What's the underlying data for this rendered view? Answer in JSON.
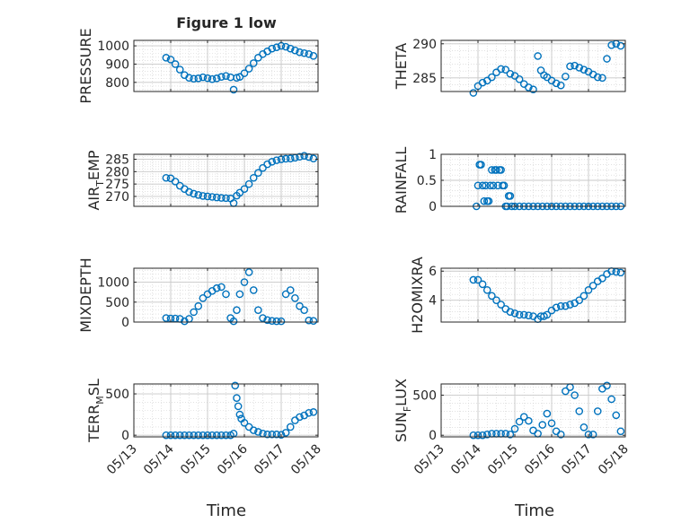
{
  "figure": {
    "title": "Figure 1 low",
    "xlabel": "Time",
    "date_ticks": [
      "05/13",
      "05/14",
      "05/15",
      "05/16",
      "05/17",
      "05/18"
    ],
    "marker_color": "#0072BD",
    "grid": true
  },
  "chart_data": [
    {
      "type": "scatter",
      "ylabel": "PRESSURE",
      "ylim": [
        750,
        1030
      ],
      "yticks": [
        800,
        900,
        1000
      ],
      "x": [
        "05/13 21:00",
        "05/14 00:00",
        "05/14 03:00",
        "05/14 06:00",
        "05/14 09:00",
        "05/14 12:00",
        "05/14 15:00",
        "05/14 18:00",
        "05/14 21:00",
        "05/15 00:00",
        "05/15 03:00",
        "05/15 06:00",
        "05/15 09:00",
        "05/15 12:00",
        "05/15 15:00",
        "05/15 17:00",
        "05/15 19:00",
        "05/15 21:00",
        "05/16 00:00",
        "05/16 03:00",
        "05/16 06:00",
        "05/16 09:00",
        "05/16 12:00",
        "05/16 15:00",
        "05/16 18:00",
        "05/16 21:00",
        "05/17 00:00",
        "05/17 03:00",
        "05/17 06:00",
        "05/17 09:00",
        "05/17 12:00",
        "05/17 15:00",
        "05/17 18:00",
        "05/17 21:00"
      ],
      "y": [
        935,
        925,
        900,
        870,
        840,
        825,
        820,
        822,
        828,
        823,
        818,
        822,
        830,
        835,
        828,
        760,
        825,
        830,
        850,
        875,
        905,
        935,
        955,
        970,
        985,
        992,
        1000,
        995,
        985,
        975,
        965,
        960,
        955,
        945
      ]
    },
    {
      "type": "scatter",
      "ylabel": "THETA",
      "ylim": [
        283,
        290.5
      ],
      "yticks": [
        285,
        290
      ],
      "x": [
        "05/13 21:00",
        "05/14 00:00",
        "05/14 03:00",
        "05/14 06:00",
        "05/14 09:00",
        "05/14 12:00",
        "05/14 15:00",
        "05/14 18:00",
        "05/14 21:00",
        "05/15 00:00",
        "05/15 03:00",
        "05/15 06:00",
        "05/15 09:00",
        "05/15 12:00",
        "05/15 15:00",
        "05/15 17:00",
        "05/15 19:00",
        "05/15 21:00",
        "05/16 00:00",
        "05/16 03:00",
        "05/16 06:00",
        "05/16 09:00",
        "05/16 12:00",
        "05/16 15:00",
        "05/16 18:00",
        "05/16 21:00",
        "05/17 00:00",
        "05/17 03:00",
        "05/17 06:00",
        "05/17 09:00",
        "05/17 12:00",
        "05/17 15:00",
        "05/17 18:00",
        "05/17 21:00"
      ],
      "y": [
        282.8,
        283.8,
        284.3,
        284.6,
        285.1,
        285.8,
        286.3,
        286.2,
        285.6,
        285.3,
        284.8,
        284.1,
        283.6,
        283.3,
        288.2,
        286.1,
        285.4,
        285.1,
        284.6,
        284.2,
        283.9,
        285.2,
        286.7,
        286.8,
        286.5,
        286.2,
        285.9,
        285.5,
        285.1,
        285.0,
        287.8,
        289.8,
        290.0,
        289.7
      ]
    },
    {
      "type": "scatter",
      "ylabel": "AIR_TEMP",
      "ylim": [
        266,
        287
      ],
      "yticks": [
        270,
        275,
        280,
        285
      ],
      "x": [
        "05/13 21:00",
        "05/14 00:00",
        "05/14 03:00",
        "05/14 06:00",
        "05/14 09:00",
        "05/14 12:00",
        "05/14 15:00",
        "05/14 18:00",
        "05/14 21:00",
        "05/15 00:00",
        "05/15 03:00",
        "05/15 06:00",
        "05/15 09:00",
        "05/15 12:00",
        "05/15 15:00",
        "05/15 17:00",
        "05/15 19:00",
        "05/15 21:00",
        "05/16 00:00",
        "05/16 03:00",
        "05/16 06:00",
        "05/16 09:00",
        "05/16 12:00",
        "05/16 15:00",
        "05/16 18:00",
        "05/16 21:00",
        "05/17 00:00",
        "05/17 03:00",
        "05/17 06:00",
        "05/17 09:00",
        "05/17 12:00",
        "05/17 15:00",
        "05/17 18:00",
        "05/17 21:00"
      ],
      "y": [
        277.5,
        277.3,
        276.0,
        274.3,
        273.0,
        271.8,
        271.1,
        270.6,
        270.2,
        270.0,
        269.8,
        269.6,
        269.4,
        269.3,
        269.2,
        267.3,
        270.3,
        271.5,
        273.0,
        275.0,
        277.5,
        279.5,
        281.5,
        283.0,
        284.0,
        284.6,
        285.0,
        285.2,
        285.3,
        285.6,
        286.0,
        286.4,
        285.9,
        285.3
      ]
    },
    {
      "type": "scatter",
      "ylabel": "RAINFALL",
      "ylim": [
        0,
        1
      ],
      "yticks": [
        0,
        0.5,
        1
      ],
      "x": [
        "05/13 23:00",
        "05/14 00:00",
        "05/14 01:00",
        "05/14 02:00",
        "05/14 03:00",
        "05/14 04:00",
        "05/14 05:00",
        "05/14 06:00",
        "05/14 07:00",
        "05/14 08:00",
        "05/14 09:00",
        "05/14 10:00",
        "05/14 11:00",
        "05/14 12:00",
        "05/14 13:00",
        "05/14 14:00",
        "05/14 15:00",
        "05/14 16:00",
        "05/14 17:00",
        "05/14 18:00",
        "05/14 19:00",
        "05/14 20:00",
        "05/14 21:00",
        "05/14 22:00",
        "05/15 00:00",
        "05/15 03:00",
        "05/15 06:00",
        "05/15 09:00",
        "05/15 12:00",
        "05/15 15:00",
        "05/15 18:00",
        "05/15 21:00",
        "05/16 00:00",
        "05/16 03:00",
        "05/16 06:00",
        "05/16 09:00",
        "05/16 12:00",
        "05/16 15:00",
        "05/16 18:00",
        "05/16 21:00",
        "05/17 00:00",
        "05/17 03:00",
        "05/17 06:00",
        "05/17 09:00",
        "05/17 12:00",
        "05/17 15:00",
        "05/17 18:00",
        "05/17 21:00"
      ],
      "y": [
        0,
        0.4,
        0.8,
        0.8,
        0.4,
        0.1,
        0.4,
        0.1,
        0.1,
        0.4,
        0.7,
        0.4,
        0.7,
        0.7,
        0.4,
        0.7,
        0.7,
        0.4,
        0.4,
        0,
        0,
        0.2,
        0.2,
        0,
        0,
        0,
        0,
        0,
        0,
        0,
        0,
        0,
        0,
        0,
        0,
        0,
        0,
        0,
        0,
        0,
        0,
        0,
        0,
        0,
        0,
        0,
        0,
        0
      ]
    },
    {
      "type": "scatter",
      "ylabel": "MIXDEPTH",
      "ylim": [
        0,
        1350
      ],
      "yticks": [
        0,
        500,
        1000
      ],
      "x": [
        "05/13 21:00",
        "05/14 00:00",
        "05/14 03:00",
        "05/14 06:00",
        "05/14 09:00",
        "05/14 12:00",
        "05/14 15:00",
        "05/14 18:00",
        "05/14 21:00",
        "05/15 00:00",
        "05/15 03:00",
        "05/15 06:00",
        "05/15 09:00",
        "05/15 12:00",
        "05/15 15:00",
        "05/15 17:00",
        "05/15 19:00",
        "05/15 21:00",
        "05/16 00:00",
        "05/16 03:00",
        "05/16 06:00",
        "05/16 09:00",
        "05/16 12:00",
        "05/16 15:00",
        "05/16 18:00",
        "05/16 21:00",
        "05/17 00:00",
        "05/17 03:00",
        "05/17 06:00",
        "05/17 09:00",
        "05/17 12:00",
        "05/17 15:00",
        "05/17 18:00",
        "05/17 21:00"
      ],
      "y": [
        100,
        90,
        90,
        80,
        20,
        80,
        250,
        400,
        600,
        700,
        780,
        850,
        880,
        700,
        100,
        20,
        300,
        700,
        1000,
        1250,
        800,
        300,
        100,
        50,
        30,
        20,
        20,
        700,
        800,
        600,
        400,
        300,
        40,
        30
      ]
    },
    {
      "type": "scatter",
      "ylabel": "H2OMIXRA",
      "ylim": [
        2.5,
        6.2
      ],
      "yticks": [
        4,
        6
      ],
      "x": [
        "05/13 21:00",
        "05/14 00:00",
        "05/14 03:00",
        "05/14 06:00",
        "05/14 09:00",
        "05/14 12:00",
        "05/14 15:00",
        "05/14 18:00",
        "05/14 21:00",
        "05/15 00:00",
        "05/15 03:00",
        "05/15 06:00",
        "05/15 09:00",
        "05/15 12:00",
        "05/15 15:00",
        "05/15 17:00",
        "05/15 19:00",
        "05/15 21:00",
        "05/16 00:00",
        "05/16 03:00",
        "05/16 06:00",
        "05/16 09:00",
        "05/16 12:00",
        "05/16 15:00",
        "05/16 18:00",
        "05/16 21:00",
        "05/17 00:00",
        "05/17 03:00",
        "05/17 06:00",
        "05/17 09:00",
        "05/17 12:00",
        "05/17 15:00",
        "05/17 18:00",
        "05/17 21:00"
      ],
      "y": [
        5.4,
        5.4,
        5.1,
        4.7,
        4.3,
        4.0,
        3.7,
        3.4,
        3.2,
        3.1,
        3.0,
        3.0,
        2.95,
        2.9,
        2.7,
        2.9,
        2.9,
        3.0,
        3.3,
        3.5,
        3.6,
        3.6,
        3.7,
        3.8,
        4.0,
        4.3,
        4.7,
        5.0,
        5.3,
        5.5,
        5.8,
        6.0,
        5.95,
        5.9
      ]
    },
    {
      "type": "scatter",
      "ylabel": "TERR_MSL",
      "ylim": [
        -20,
        620
      ],
      "yticks": [
        0,
        500
      ],
      "x": [
        "05/13 21:00",
        "05/14 00:00",
        "05/14 03:00",
        "05/14 06:00",
        "05/14 09:00",
        "05/14 12:00",
        "05/14 15:00",
        "05/14 18:00",
        "05/14 21:00",
        "05/15 00:00",
        "05/15 03:00",
        "05/15 06:00",
        "05/15 09:00",
        "05/15 12:00",
        "05/15 15:00",
        "05/15 17:00",
        "05/15 18:00",
        "05/15 19:00",
        "05/15 20:00",
        "05/15 21:00",
        "05/15 22:00",
        "05/16 00:00",
        "05/16 03:00",
        "05/16 06:00",
        "05/16 09:00",
        "05/16 12:00",
        "05/16 15:00",
        "05/16 18:00",
        "05/16 21:00",
        "05/17 00:00",
        "05/17 03:00",
        "05/17 06:00",
        "05/17 09:00",
        "05/17 12:00",
        "05/17 15:00",
        "05/17 18:00",
        "05/17 21:00"
      ],
      "y": [
        0,
        0,
        0,
        0,
        0,
        0,
        0,
        0,
        0,
        0,
        0,
        0,
        0,
        0,
        0,
        20,
        600,
        450,
        350,
        250,
        200,
        150,
        100,
        60,
        40,
        20,
        10,
        10,
        10,
        5,
        30,
        100,
        180,
        220,
        240,
        270,
        280
      ]
    },
    {
      "type": "scatter",
      "ylabel": "SUN_FLUX",
      "ylim": [
        -20,
        640
      ],
      "yticks": [
        0,
        500
      ],
      "x": [
        "05/13 21:00",
        "05/14 00:00",
        "05/14 03:00",
        "05/14 06:00",
        "05/14 09:00",
        "05/14 12:00",
        "05/14 15:00",
        "05/14 18:00",
        "05/14 21:00",
        "05/15 00:00",
        "05/15 03:00",
        "05/15 06:00",
        "05/15 09:00",
        "05/15 12:00",
        "05/15 15:00",
        "05/15 18:00",
        "05/15 21:00",
        "05/16 00:00",
        "05/16 03:00",
        "05/16 06:00",
        "05/16 09:00",
        "05/16 12:00",
        "05/16 15:00",
        "05/16 18:00",
        "05/16 21:00",
        "05/17 00:00",
        "05/17 03:00",
        "05/17 06:00",
        "05/17 09:00",
        "05/17 12:00",
        "05/17 15:00",
        "05/17 18:00",
        "05/17 21:00"
      ],
      "y": [
        0,
        0,
        0,
        10,
        20,
        20,
        20,
        20,
        10,
        80,
        170,
        230,
        180,
        60,
        20,
        130,
        270,
        150,
        50,
        10,
        550,
        600,
        500,
        300,
        100,
        10,
        10,
        300,
        580,
        620,
        450,
        250,
        50
      ]
    }
  ]
}
